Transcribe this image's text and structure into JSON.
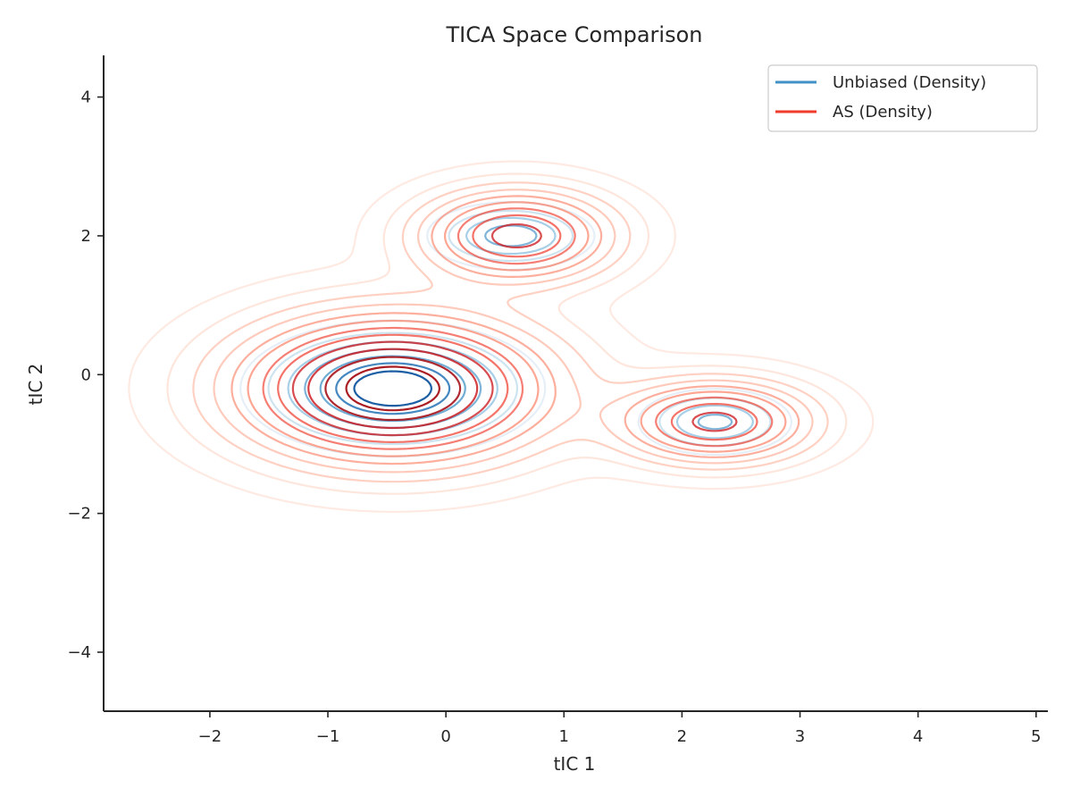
{
  "chart_data": {
    "type": "contour",
    "title": "TICA Space Comparison",
    "xlabel": "tIC 1",
    "ylabel": "tIC 2",
    "xlim": [
      -2.9,
      5.1
    ],
    "ylim": [
      -4.85,
      4.6
    ],
    "xticks": [
      -2,
      -1,
      0,
      1,
      2,
      3,
      4,
      5
    ],
    "yticks": [
      -4,
      -2,
      0,
      2,
      4
    ],
    "legend_position": "upper right",
    "series": [
      {
        "name": "Unbiased (Density)",
        "color": "#4292c6",
        "colormap": "Blues",
        "components": [
          {
            "center": [
              -0.45,
              -0.2
            ],
            "weight": 0.78,
            "sx": 0.5,
            "sy": 0.38
          },
          {
            "center": [
              0.55,
              2.0
            ],
            "weight": 0.12,
            "sx": 0.32,
            "sy": 0.22
          },
          {
            "center": [
              2.28,
              -0.68
            ],
            "weight": 0.1,
            "sx": 0.3,
            "sy": 0.22
          }
        ]
      },
      {
        "name": "AS (Density)",
        "color": "#ef3b2c",
        "colormap": "Reds",
        "components": [
          {
            "center": [
              -0.45,
              -0.2
            ],
            "weight": 0.68,
            "sx": 0.78,
            "sy": 0.62
          },
          {
            "center": [
              0.6,
              2.0
            ],
            "weight": 0.17,
            "sx": 0.5,
            "sy": 0.4
          },
          {
            "center": [
              2.28,
              -0.68
            ],
            "weight": 0.15,
            "sx": 0.5,
            "sy": 0.36
          }
        ]
      }
    ]
  }
}
